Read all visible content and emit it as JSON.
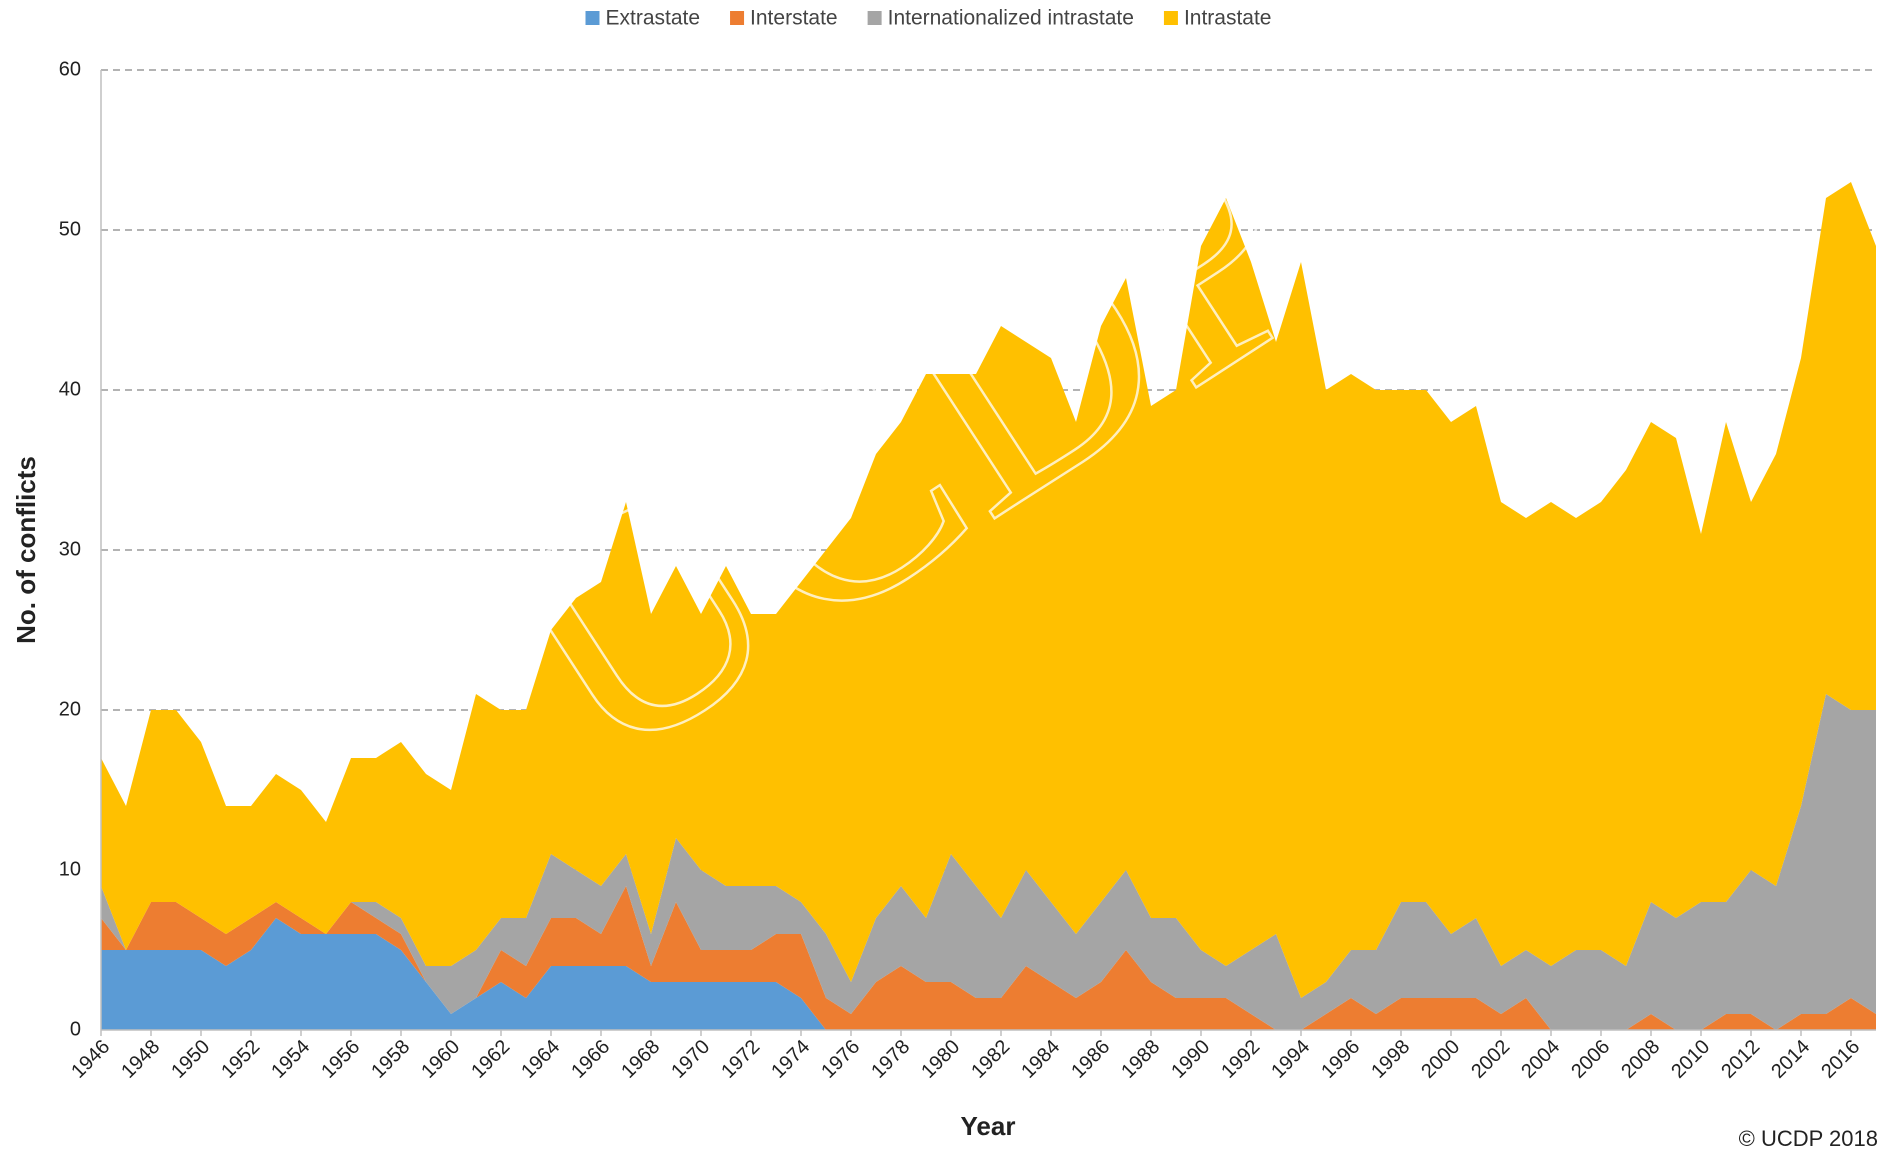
{
  "chart_data": {
    "type": "stacked_area",
    "watermark": "UCDP",
    "copyright": "© UCDP 2018",
    "xlabel": "Year",
    "ylabel": "No. of conflicts",
    "x": [
      1946,
      1947,
      1948,
      1949,
      1950,
      1951,
      1952,
      1953,
      1954,
      1955,
      1956,
      1957,
      1958,
      1959,
      1960,
      1961,
      1962,
      1963,
      1964,
      1965,
      1966,
      1967,
      1968,
      1969,
      1970,
      1971,
      1972,
      1973,
      1974,
      1975,
      1976,
      1977,
      1978,
      1979,
      1980,
      1981,
      1982,
      1983,
      1984,
      1985,
      1986,
      1987,
      1988,
      1989,
      1990,
      1991,
      1992,
      1993,
      1994,
      1995,
      1996,
      1997,
      1998,
      1999,
      2000,
      2001,
      2002,
      2003,
      2004,
      2005,
      2006,
      2007,
      2008,
      2009,
      2010,
      2011,
      2012,
      2013,
      2014,
      2015,
      2016,
      2017
    ],
    "xlim": [
      1946,
      2017
    ],
    "xticks": [
      1946,
      1948,
      1950,
      1952,
      1954,
      1956,
      1958,
      1960,
      1962,
      1964,
      1966,
      1968,
      1970,
      1972,
      1974,
      1976,
      1978,
      1980,
      1982,
      1984,
      1986,
      1988,
      1990,
      1992,
      1994,
      1996,
      1998,
      2000,
      2002,
      2004,
      2006,
      2008,
      2010,
      2012,
      2014,
      2016
    ],
    "ylim": [
      0,
      60
    ],
    "yticks": [
      0,
      10,
      20,
      30,
      40,
      50,
      60
    ],
    "grid": true,
    "legend": "top",
    "series": [
      {
        "name": "Extrastate",
        "color": "#5b9bd5",
        "values": [
          5,
          5,
          5,
          5,
          5,
          4,
          5,
          7,
          6,
          6,
          6,
          6,
          5,
          3,
          1,
          2,
          3,
          2,
          4,
          4,
          4,
          4,
          3,
          3,
          3,
          3,
          3,
          3,
          2,
          0,
          0,
          0,
          0,
          0,
          0,
          0,
          0,
          0,
          0,
          0,
          0,
          0,
          0,
          0,
          0,
          0,
          0,
          0,
          0,
          0,
          0,
          0,
          0,
          0,
          0,
          0,
          0,
          0,
          0,
          0,
          0,
          0,
          0,
          0,
          0,
          0,
          0,
          0,
          0,
          0,
          0,
          0
        ]
      },
      {
        "name": "Interstate",
        "color": "#ed7d31",
        "values": [
          2,
          0,
          3,
          3,
          2,
          2,
          2,
          1,
          1,
          0,
          2,
          1,
          1,
          0,
          0,
          0,
          2,
          2,
          3,
          3,
          2,
          5,
          1,
          5,
          2,
          2,
          2,
          3,
          4,
          2,
          1,
          3,
          4,
          3,
          3,
          2,
          2,
          4,
          3,
          2,
          3,
          5,
          3,
          2,
          2,
          2,
          1,
          0,
          0,
          1,
          2,
          1,
          2,
          2,
          2,
          2,
          1,
          2,
          0,
          0,
          0,
          0,
          1,
          0,
          0,
          1,
          1,
          0,
          1,
          1,
          2,
          1
        ]
      },
      {
        "name": "Internationalized intrastate",
        "color": "#a5a5a5",
        "values": [
          2,
          0,
          0,
          0,
          0,
          0,
          0,
          0,
          0,
          0,
          0,
          1,
          1,
          1,
          3,
          3,
          2,
          3,
          4,
          3,
          3,
          2,
          2,
          4,
          5,
          4,
          4,
          3,
          2,
          4,
          2,
          4,
          5,
          4,
          8,
          7,
          5,
          6,
          5,
          4,
          5,
          5,
          4,
          5,
          3,
          2,
          4,
          6,
          2,
          2,
          3,
          4,
          6,
          6,
          4,
          5,
          3,
          3,
          4,
          5,
          5,
          4,
          7,
          7,
          8,
          7,
          9,
          9,
          13,
          20,
          18,
          19
        ]
      },
      {
        "name": "Intrastate",
        "color": "#ffc000",
        "values": [
          8,
          9,
          12,
          12,
          11,
          8,
          7,
          8,
          8,
          7,
          9,
          9,
          11,
          12,
          11,
          16,
          13,
          13,
          14,
          17,
          19,
          22,
          20,
          17,
          16,
          20,
          17,
          17,
          20,
          24,
          29,
          29,
          29,
          34,
          30,
          32,
          37,
          33,
          34,
          32,
          36,
          37,
          32,
          33,
          44,
          48,
          43,
          37,
          46,
          37,
          36,
          35,
          32,
          32,
          32,
          32,
          29,
          27,
          29,
          27,
          28,
          31,
          30,
          30,
          23,
          30,
          23,
          27,
          28,
          31,
          33,
          29
        ]
      }
    ]
  }
}
